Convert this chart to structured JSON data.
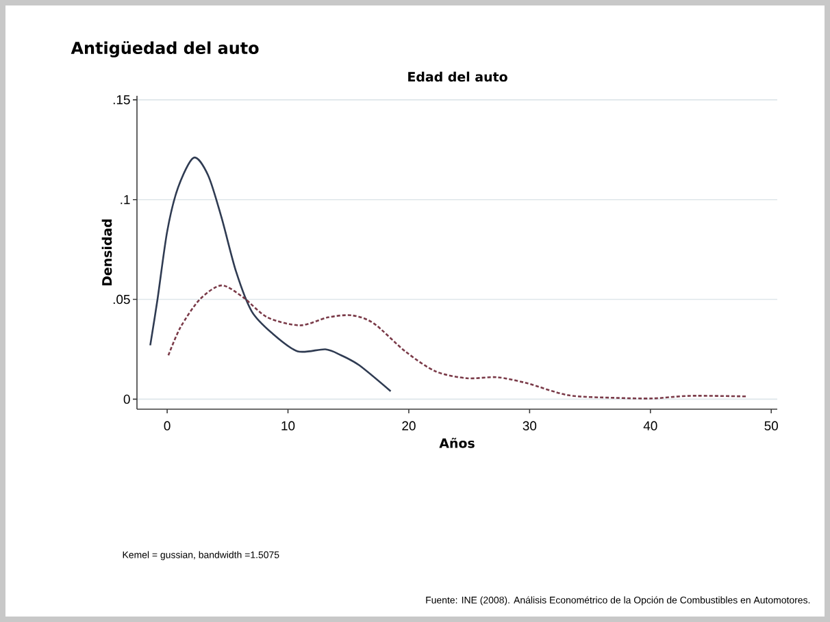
{
  "chart_data": {
    "type": "line",
    "title": "Antigüedad del auto",
    "subtitle": "Edad del auto",
    "xlabel": "Años",
    "ylabel": "Densidad",
    "xlim": [
      -2.5,
      50.5
    ],
    "ylim": [
      -0.005,
      0.152
    ],
    "xticks": [
      0,
      10,
      20,
      30,
      40,
      50
    ],
    "yticks": [
      {
        "value": 0,
        "label": "0"
      },
      {
        "value": 0.05,
        "label": ".05"
      },
      {
        "value": 0.1,
        "label": ".1"
      },
      {
        "value": 0.15,
        "label": ".15"
      }
    ],
    "grid": "y",
    "series": [
      {
        "color": "#2f3b52",
        "line_style": "solid",
        "x": [
          -1.4,
          -0.8,
          0,
          0.9,
          2.2,
          3.4,
          4.5,
          5.7,
          7.0,
          8.7,
          10.8,
          13.1,
          14.4,
          15.9,
          18.5
        ],
        "values": [
          0.027,
          0.05,
          0.084,
          0.106,
          0.121,
          0.112,
          0.091,
          0.064,
          0.044,
          0.033,
          0.024,
          0.025,
          0.022,
          0.017,
          0.004
        ]
      },
      {
        "color": "#7a3a48",
        "line_style": "dashed",
        "x": [
          0.1,
          1.1,
          2.7,
          4.5,
          6.3,
          8.3,
          11.0,
          13.3,
          15.3,
          17.1,
          19.7,
          22.2,
          24.8,
          27.3,
          29.8,
          33.2,
          37.0,
          40.2,
          43.3,
          47.9
        ],
        "values": [
          0.022,
          0.036,
          0.05,
          0.057,
          0.051,
          0.041,
          0.037,
          0.041,
          0.042,
          0.038,
          0.024,
          0.014,
          0.0105,
          0.011,
          0.008,
          0.002,
          0.0007,
          0.0004,
          0.0017,
          0.0014
        ]
      }
    ],
    "annotations": [
      "Kemel = gussian, bandwidth =1.5075",
      "Fuente: INE (2008). Análisis Econométrico de la Opción de Combustibles en Automotores."
    ]
  }
}
